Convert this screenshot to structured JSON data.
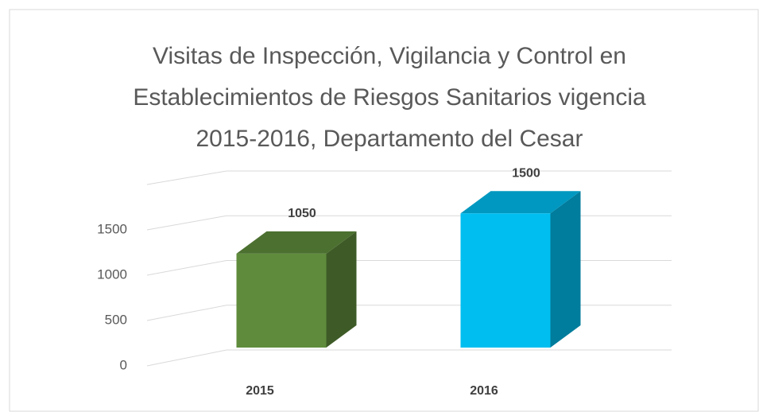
{
  "chart_data": {
    "type": "bar3d",
    "title": [
      "Visitas de Inspección, Vigilancia y Control en",
      "Establecimientos de Riesgos Sanitarios vigencia",
      "2015-2016,  Departamento del Cesar"
    ],
    "categories": [
      "2015",
      "2016"
    ],
    "values": [
      1050,
      1500
    ],
    "colors": [
      "#5f8c3c",
      "#00bef0"
    ],
    "ylim": [
      0,
      2000
    ],
    "yticks": [
      0,
      500,
      1000,
      1500
    ],
    "grid": true
  }
}
